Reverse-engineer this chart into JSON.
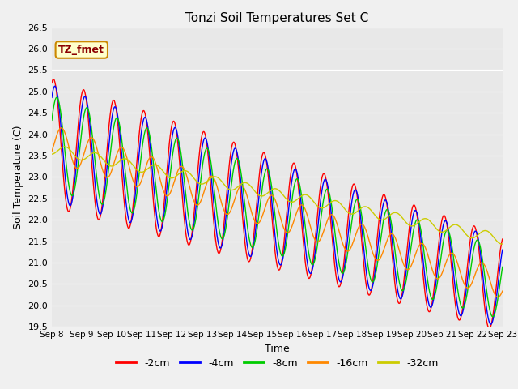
{
  "title": "Tonzi Soil Temperatures Set C",
  "xlabel": "Time",
  "ylabel": "Soil Temperature (C)",
  "ylim": [
    19.5,
    26.5
  ],
  "xtick_labels": [
    "Sep 8",
    "Sep 9",
    "Sep 10",
    "Sep 11",
    "Sep 12",
    "Sep 13",
    "Sep 14",
    "Sep 15",
    "Sep 16",
    "Sep 17",
    "Sep 18",
    "Sep 19",
    "Sep 20",
    "Sep 21",
    "Sep 22",
    "Sep 23"
  ],
  "legend_labels": [
    "-2cm",
    "-4cm",
    "-8cm",
    "-16cm",
    "-32cm"
  ],
  "line_colors": [
    "#ff0000",
    "#0000ff",
    "#00cc00",
    "#ff8800",
    "#cccc00"
  ],
  "fig_bg": "#f0f0f0",
  "plot_bg": "#e8e8e8",
  "annotation_text": "TZ_fmet",
  "annotation_bg": "#ffffcc",
  "annotation_border": "#cc8800",
  "ytick_min": 19.5,
  "ytick_max": 26.5,
  "ytick_step": 0.5
}
